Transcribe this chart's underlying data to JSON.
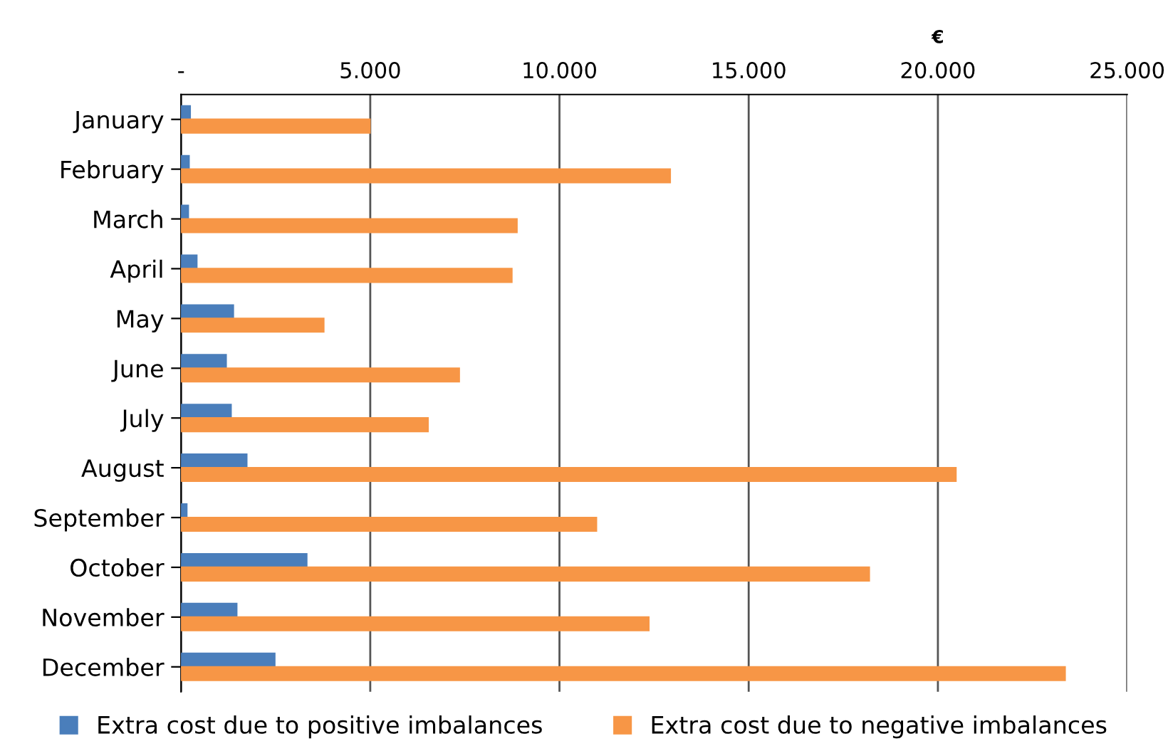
{
  "chart_data": {
    "type": "bar",
    "orientation": "horizontal",
    "xlabel": "€",
    "categories": [
      "January",
      "February",
      "March",
      "April",
      "May",
      "June",
      "July",
      "August",
      "September",
      "October",
      "November",
      "December"
    ],
    "series": [
      {
        "name": "Extra cost due to positive imbalances",
        "color": "#4a7ebb",
        "values": [
          240,
          210,
          190,
          415,
          1380,
          1190,
          1320,
          1735,
          150,
          3320,
          1470,
          2475
        ]
      },
      {
        "name": "Extra cost due to negative imbalances",
        "color": "#f79646",
        "values": [
          4990,
          12925,
          8875,
          8740,
          3770,
          7350,
          6525,
          20475,
          10975,
          18185,
          12360,
          23360
        ]
      }
    ],
    "xlim": [
      0,
      25000
    ],
    "xticks": [
      {
        "value": 0,
        "label": "-"
      },
      {
        "value": 5000,
        "label": "5.000"
      },
      {
        "value": 10000,
        "label": "10.000"
      },
      {
        "value": 15000,
        "label": "15.000"
      },
      {
        "value": 20000,
        "label": "20.000"
      },
      {
        "value": 25000,
        "label": "25.000"
      }
    ],
    "grid": "x",
    "legend": "bottom"
  }
}
